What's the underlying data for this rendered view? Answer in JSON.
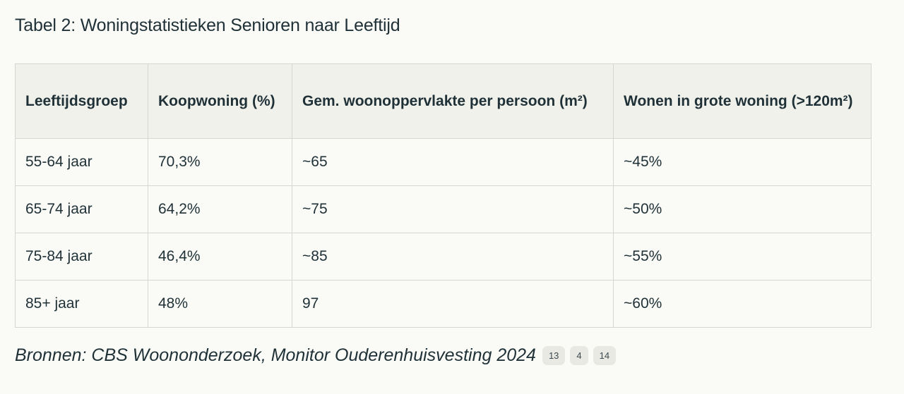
{
  "title": "Tabel 2: Woningstatistieken Senioren naar Leeftijd",
  "table": {
    "headers": [
      "Leeftijdsgroep",
      "Koopwoning (%)",
      "Gem. woonoppervlakte per persoon (m²)",
      "Wonen in grote woning (>120m²)"
    ],
    "rows": [
      [
        "55-64 jaar",
        "70,3%",
        "~65",
        "~45%"
      ],
      [
        "65-74 jaar",
        "64,2%",
        "~75",
        "~50%"
      ],
      [
        "75-84 jaar",
        "46,4%",
        "~85",
        "~55%"
      ],
      [
        "85+ jaar",
        "48%",
        "97",
        "~60%"
      ]
    ]
  },
  "sources": {
    "text": "Bronnen: CBS Woononderzoek, Monitor Ouderenhuisvesting 2024",
    "citations": [
      "13",
      "4",
      "14"
    ]
  }
}
